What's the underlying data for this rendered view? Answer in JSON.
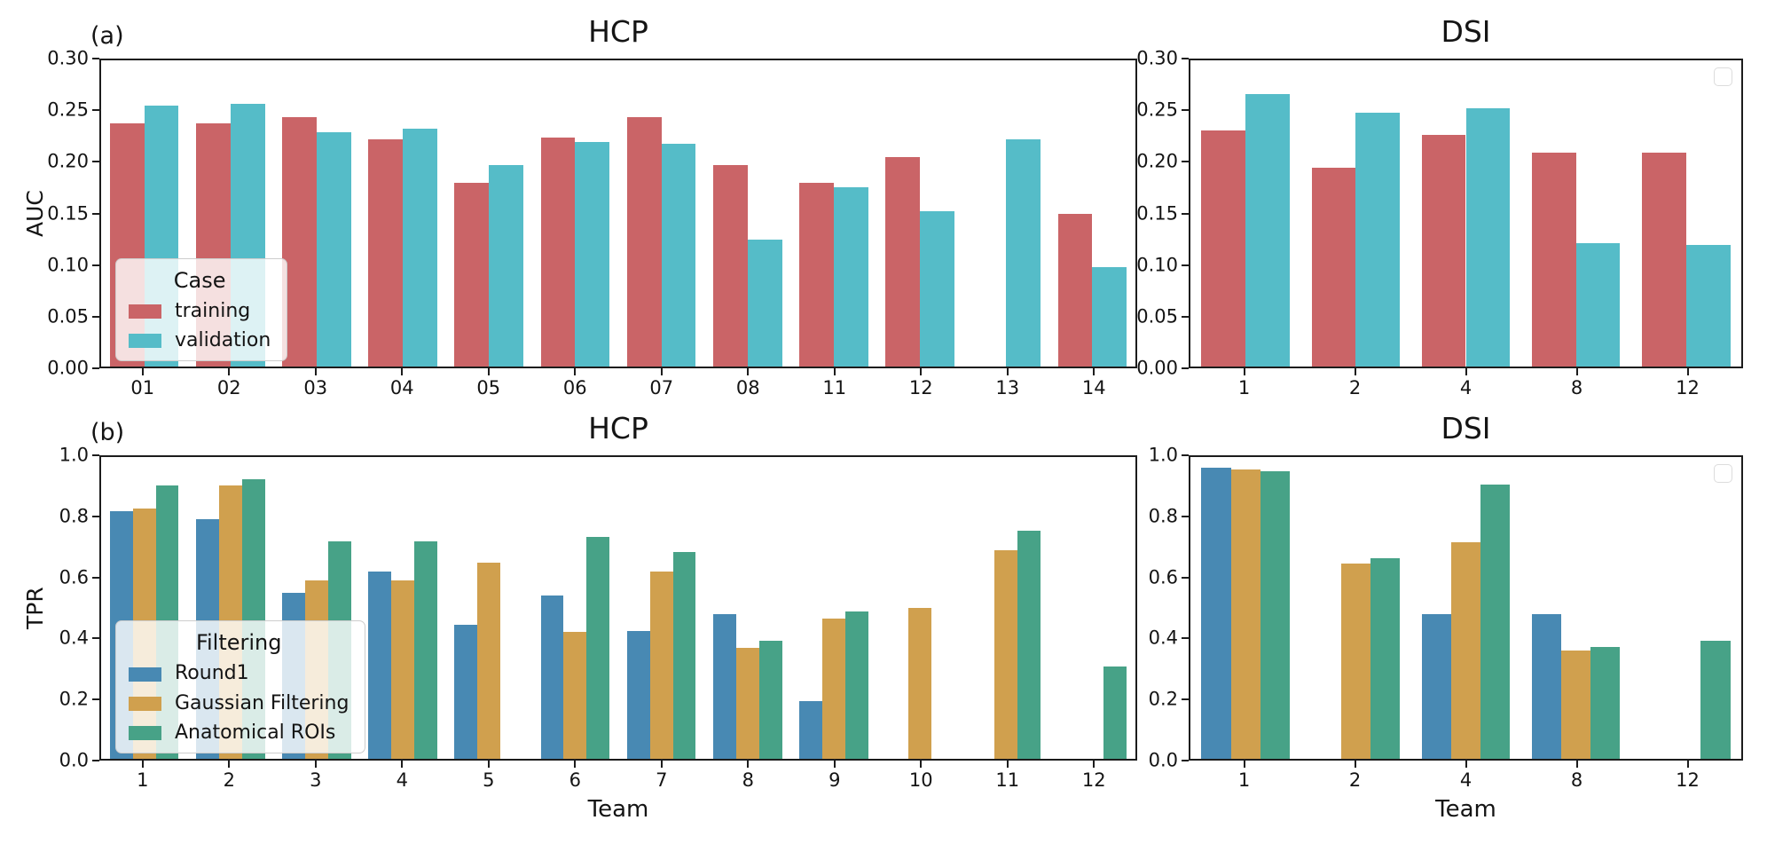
{
  "figure": {
    "bg": "#ffffff"
  },
  "colors": {
    "training": "#ca6467",
    "validation": "#55bcc8",
    "round1": "#4889b3",
    "gaussian_filtering": "#d0a04e",
    "anatomical_rois": "#47a287",
    "spine": "#1c1c1c"
  },
  "chart_data": [
    {
      "id": "panel-a-hcp",
      "type": "bar",
      "panel_label": "(a)",
      "title": "HCP",
      "xlabel": "",
      "ylabel": "AUC",
      "ylim": [
        0,
        0.3
      ],
      "ytick_labels": [
        "0.00",
        "0.05",
        "0.10",
        "0.15",
        "0.20",
        "0.25",
        "0.30"
      ],
      "grid": false,
      "categories": [
        "01",
        "02",
        "03",
        "04",
        "05",
        "06",
        "07",
        "08",
        "11",
        "12",
        "13",
        "14"
      ],
      "series": [
        {
          "name": "training",
          "color": "#ca6467",
          "values": [
            0.238,
            0.238,
            0.244,
            0.223,
            0.18,
            0.224,
            0.244,
            0.197,
            0.18,
            0.205,
            null,
            0.15
          ]
        },
        {
          "name": "validation",
          "color": "#55bcc8",
          "values": [
            0.256,
            0.257,
            0.23,
            0.233,
            0.197,
            0.22,
            0.218,
            0.124,
            0.176,
            0.152,
            0.223,
            0.097
          ]
        }
      ],
      "legend": {
        "visible": true,
        "empty": false,
        "title": "Case",
        "position": "lower-left"
      }
    },
    {
      "id": "panel-a-dsi",
      "type": "bar",
      "panel_label": "",
      "title": "DSI",
      "xlabel": "",
      "ylabel": "",
      "ylim": [
        0,
        0.3
      ],
      "ytick_labels": [
        "0.00",
        "0.05",
        "0.10",
        "0.15",
        "0.20",
        "0.25",
        "0.30"
      ],
      "grid": false,
      "categories": [
        "1",
        "2",
        "4",
        "8",
        "12"
      ],
      "series": [
        {
          "name": "training",
          "color": "#ca6467",
          "values": [
            0.231,
            0.195,
            0.227,
            0.21,
            0.21
          ]
        },
        {
          "name": "validation",
          "color": "#55bcc8",
          "values": [
            0.267,
            0.249,
            0.253,
            0.121,
            0.119
          ]
        }
      ],
      "legend": {
        "visible": true,
        "empty": true,
        "title": "",
        "position": "upper-right"
      }
    },
    {
      "id": "panel-b-hcp",
      "type": "bar",
      "panel_label": "(b)",
      "title": "HCP",
      "xlabel": "Team",
      "ylabel": "TPR",
      "ylim": [
        0,
        1.0
      ],
      "ytick_labels": [
        "0.0",
        "0.2",
        "0.4",
        "0.6",
        "0.8",
        "1.0"
      ],
      "grid": false,
      "categories": [
        "1",
        "2",
        "3",
        "4",
        "5",
        "6",
        "7",
        "8",
        "9",
        "10",
        "11",
        "12"
      ],
      "series": [
        {
          "name": "Round1",
          "color": "#4889b3",
          "values": [
            0.82,
            0.795,
            0.551,
            0.62,
            0.445,
            0.541,
            0.425,
            0.48,
            0.19,
            null,
            null,
            null
          ]
        },
        {
          "name": "Gaussian Filtering",
          "color": "#d0a04e",
          "values": [
            0.828,
            0.905,
            0.59,
            0.59,
            0.65,
            0.42,
            0.62,
            0.368,
            0.465,
            0.5,
            0.69,
            null
          ]
        },
        {
          "name": "Anatomical ROIs",
          "color": "#47a287",
          "values": [
            0.905,
            0.927,
            0.72,
            0.72,
            null,
            0.735,
            0.685,
            0.39,
            0.487,
            null,
            0.755,
            0.305
          ]
        }
      ],
      "legend": {
        "visible": true,
        "empty": false,
        "title": "Filtering",
        "position": "lower-left"
      }
    },
    {
      "id": "panel-b-dsi",
      "type": "bar",
      "panel_label": "",
      "title": "DSI",
      "xlabel": "Team",
      "ylabel": "",
      "ylim": [
        0,
        1.0
      ],
      "ytick_labels": [
        "0.0",
        "0.2",
        "0.4",
        "0.6",
        "0.8",
        "1.0"
      ],
      "grid": false,
      "categories": [
        "1",
        "2",
        "4",
        "8",
        "12"
      ],
      "series": [
        {
          "name": "Round1",
          "color": "#4889b3",
          "values": [
            0.965,
            null,
            0.48,
            0.48,
            null
          ]
        },
        {
          "name": "Gaussian Filtering",
          "color": "#d0a04e",
          "values": [
            0.958,
            0.648,
            0.718,
            0.36,
            null
          ]
        },
        {
          "name": "Anatomical ROIs",
          "color": "#47a287",
          "values": [
            0.953,
            0.665,
            0.91,
            0.372,
            0.39
          ]
        }
      ],
      "legend": {
        "visible": true,
        "empty": true,
        "title": "",
        "position": "upper-right"
      }
    }
  ]
}
